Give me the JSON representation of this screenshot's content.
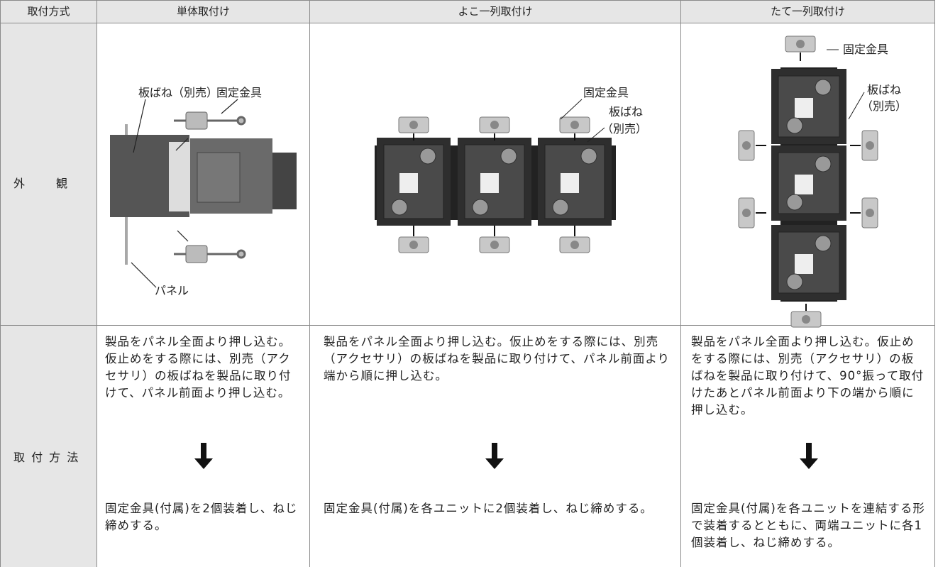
{
  "header": [
    "取付方式",
    "単体取付け",
    "よこ一列取付け",
    "たて一列取付け"
  ],
  "appearance": {
    "label": "外　観",
    "single": {
      "spring": "板ばね（別売）",
      "bracket": "固定金具",
      "panel": "パネル"
    },
    "horizontal": {
      "bracket": "固定金具",
      "spring": [
        "板ばね",
        "（別売）"
      ]
    },
    "vertical": {
      "bracket": "固定金具",
      "spring": [
        "板ばね",
        "（別売）"
      ]
    }
  },
  "method": {
    "label": "取 付 方 法",
    "steps": [
      {
        "before": "製品をパネル全面より押し込む。仮止めをする際には、別売（アクセサリ）の板ばねを製品に取り付けて、パネル前面より押し込む。",
        "after": "固定金具(付属)を2個装着し、ねじ締めする。"
      },
      {
        "before": "製品をパネル全面より押し込む。仮止めをする際には、別売（アクセサリ）の板ばねを製品に取り付けて、パネル前面より端から順に押し込む。",
        "after": "固定金具(付属)を各ユニットに2個装着し、ねじ締めする。"
      },
      {
        "before": "製品をパネル全面より押し込む。仮止めをする際には、別売（アクセサリ）の板ばねを製品に取り付けて、90°振って取付けたあとパネル前面より下の端から順に押し込む。",
        "after": "固定金具(付属)を各ユニットを連結する形で装着するとともに、両端ユニットに各1個装着し、ねじ締めする。"
      }
    ]
  }
}
